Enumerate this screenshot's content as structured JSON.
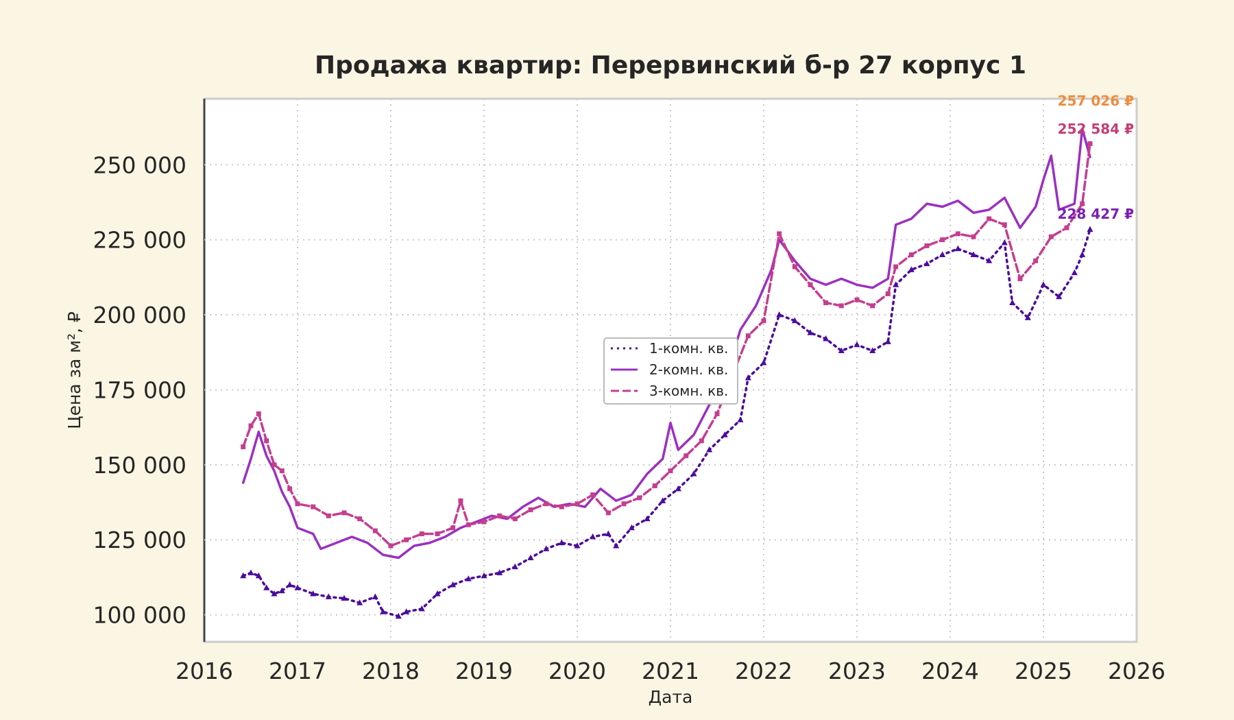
{
  "chart_data": {
    "type": "line",
    "title": "Продажа квартир: Перервинский б-р 27 корпус 1",
    "xlabel": "Дата",
    "ylabel": "Цена за м², ₽",
    "xlim": [
      "2016",
      "2026"
    ],
    "ylim": [
      91000,
      272000
    ],
    "x_ticks": [
      "2016",
      "2017",
      "2018",
      "2019",
      "2020",
      "2021",
      "2022",
      "2023",
      "2024",
      "2025",
      "2026"
    ],
    "y_ticks": [
      "100 000",
      "125 000",
      "150 000",
      "175 000",
      "200 000",
      "225 000",
      "250 000"
    ],
    "y_tick_values": [
      100000,
      125000,
      150000,
      175000,
      200000,
      225000,
      250000
    ],
    "grid": true,
    "legend_position": "center",
    "series": [
      {
        "name": "1-комн. кв.",
        "color": "#4b0c9c",
        "style": "dotted",
        "marker": "triangle",
        "end_label": "228 427 ₽",
        "points": [
          [
            "2016-06",
            113000
          ],
          [
            "2016-07",
            114000
          ],
          [
            "2016-08",
            113000
          ],
          [
            "2016-09",
            109000
          ],
          [
            "2016-10",
            107000
          ],
          [
            "2016-11",
            108000
          ],
          [
            "2016-12",
            110000
          ],
          [
            "2017-01",
            109000
          ],
          [
            "2017-03",
            107000
          ],
          [
            "2017-05",
            106000
          ],
          [
            "2017-07",
            105500
          ],
          [
            "2017-09",
            104000
          ],
          [
            "2017-11",
            106000
          ],
          [
            "2017-12",
            101000
          ],
          [
            "2018-02",
            99500
          ],
          [
            "2018-03",
            101000
          ],
          [
            "2018-05",
            102000
          ],
          [
            "2018-07",
            107000
          ],
          [
            "2018-09",
            110000
          ],
          [
            "2018-11",
            112000
          ],
          [
            "2019-01",
            113000
          ],
          [
            "2019-03",
            114000
          ],
          [
            "2019-05",
            116000
          ],
          [
            "2019-07",
            119000
          ],
          [
            "2019-09",
            122000
          ],
          [
            "2019-11",
            124000
          ],
          [
            "2020-01",
            123000
          ],
          [
            "2020-03",
            126000
          ],
          [
            "2020-05",
            127000
          ],
          [
            "2020-06",
            123000
          ],
          [
            "2020-08",
            129000
          ],
          [
            "2020-10",
            132000
          ],
          [
            "2020-12",
            138000
          ],
          [
            "2021-02",
            142000
          ],
          [
            "2021-04",
            147000
          ],
          [
            "2021-06",
            155000
          ],
          [
            "2021-08",
            160000
          ],
          [
            "2021-10",
            165000
          ],
          [
            "2021-11",
            179000
          ],
          [
            "2022-01",
            184000
          ],
          [
            "2022-03",
            200000
          ],
          [
            "2022-05",
            198000
          ],
          [
            "2022-07",
            194000
          ],
          [
            "2022-09",
            192000
          ],
          [
            "2022-11",
            188000
          ],
          [
            "2023-01",
            190000
          ],
          [
            "2023-03",
            188000
          ],
          [
            "2023-05",
            191000
          ],
          [
            "2023-06",
            210000
          ],
          [
            "2023-08",
            215000
          ],
          [
            "2023-10",
            217000
          ],
          [
            "2023-12",
            220000
          ],
          [
            "2024-02",
            222000
          ],
          [
            "2024-04",
            220000
          ],
          [
            "2024-06",
            218000
          ],
          [
            "2024-08",
            224000
          ],
          [
            "2024-09",
            204000
          ],
          [
            "2024-11",
            199000
          ],
          [
            "2025-01",
            210000
          ],
          [
            "2025-03",
            206000
          ],
          [
            "2025-05",
            214000
          ],
          [
            "2025-06",
            220000
          ],
          [
            "2025-07",
            228427
          ]
        ]
      },
      {
        "name": "2-комн. кв.",
        "color": "#9b30c0",
        "style": "solid",
        "marker": "none",
        "end_label": "252 584 ₽",
        "points": [
          [
            "2016-06",
            144000
          ],
          [
            "2016-07",
            152000
          ],
          [
            "2016-08",
            161000
          ],
          [
            "2016-09",
            153000
          ],
          [
            "2016-10",
            148000
          ],
          [
            "2016-11",
            141000
          ],
          [
            "2016-12",
            136000
          ],
          [
            "2017-01",
            129000
          ],
          [
            "2017-03",
            127000
          ],
          [
            "2017-04",
            122000
          ],
          [
            "2017-06",
            124000
          ],
          [
            "2017-08",
            126000
          ],
          [
            "2017-10",
            124000
          ],
          [
            "2017-12",
            120000
          ],
          [
            "2018-02",
            119000
          ],
          [
            "2018-04",
            123000
          ],
          [
            "2018-06",
            124000
          ],
          [
            "2018-08",
            126000
          ],
          [
            "2018-10",
            129000
          ],
          [
            "2018-12",
            131000
          ],
          [
            "2019-02",
            133000
          ],
          [
            "2019-04",
            132000
          ],
          [
            "2019-06",
            136000
          ],
          [
            "2019-08",
            139000
          ],
          [
            "2019-10",
            136000
          ],
          [
            "2019-12",
            137000
          ],
          [
            "2020-02",
            136000
          ],
          [
            "2020-04",
            142000
          ],
          [
            "2020-06",
            138000
          ],
          [
            "2020-08",
            140000
          ],
          [
            "2020-10",
            147000
          ],
          [
            "2020-12",
            152000
          ],
          [
            "2021-01",
            164000
          ],
          [
            "2021-02",
            155000
          ],
          [
            "2021-04",
            160000
          ],
          [
            "2021-06",
            170000
          ],
          [
            "2021-08",
            178000
          ],
          [
            "2021-10",
            195000
          ],
          [
            "2021-12",
            203000
          ],
          [
            "2022-02",
            215000
          ],
          [
            "2022-03",
            225000
          ],
          [
            "2022-05",
            218000
          ],
          [
            "2022-07",
            212000
          ],
          [
            "2022-09",
            210000
          ],
          [
            "2022-11",
            212000
          ],
          [
            "2023-01",
            210000
          ],
          [
            "2023-03",
            209000
          ],
          [
            "2023-05",
            212000
          ],
          [
            "2023-06",
            230000
          ],
          [
            "2023-08",
            232000
          ],
          [
            "2023-10",
            237000
          ],
          [
            "2023-12",
            236000
          ],
          [
            "2024-02",
            238000
          ],
          [
            "2024-04",
            234000
          ],
          [
            "2024-06",
            235000
          ],
          [
            "2024-08",
            239000
          ],
          [
            "2024-10",
            229000
          ],
          [
            "2024-12",
            236000
          ],
          [
            "2025-01",
            245000
          ],
          [
            "2025-02",
            253000
          ],
          [
            "2025-03",
            235000
          ],
          [
            "2025-05",
            237000
          ],
          [
            "2025-06",
            262000
          ],
          [
            "2025-07",
            252584
          ]
        ]
      },
      {
        "name": "3-комн. кв.",
        "color": "#c43e90",
        "style": "dashed",
        "marker": "square",
        "end_label": "257 026 ₽",
        "points": [
          [
            "2016-06",
            156000
          ],
          [
            "2016-07",
            163000
          ],
          [
            "2016-08",
            167000
          ],
          [
            "2016-09",
            158000
          ],
          [
            "2016-10",
            150000
          ],
          [
            "2016-11",
            148000
          ],
          [
            "2016-12",
            142000
          ],
          [
            "2017-01",
            137000
          ],
          [
            "2017-03",
            136000
          ],
          [
            "2017-05",
            133000
          ],
          [
            "2017-07",
            134000
          ],
          [
            "2017-09",
            132000
          ],
          [
            "2017-11",
            128000
          ],
          [
            "2018-01",
            123000
          ],
          [
            "2018-03",
            125000
          ],
          [
            "2018-05",
            127000
          ],
          [
            "2018-07",
            127000
          ],
          [
            "2018-09",
            129000
          ],
          [
            "2018-10",
            138000
          ],
          [
            "2018-11",
            130000
          ],
          [
            "2019-01",
            131000
          ],
          [
            "2019-03",
            133000
          ],
          [
            "2019-05",
            132000
          ],
          [
            "2019-07",
            135000
          ],
          [
            "2019-09",
            137000
          ],
          [
            "2019-11",
            136000
          ],
          [
            "2020-01",
            137000
          ],
          [
            "2020-03",
            140000
          ],
          [
            "2020-05",
            134000
          ],
          [
            "2020-07",
            137000
          ],
          [
            "2020-09",
            139000
          ],
          [
            "2020-11",
            143000
          ],
          [
            "2021-01",
            148000
          ],
          [
            "2021-03",
            153000
          ],
          [
            "2021-05",
            158000
          ],
          [
            "2021-07",
            167000
          ],
          [
            "2021-09",
            180000
          ],
          [
            "2021-11",
            193000
          ],
          [
            "2022-01",
            198000
          ],
          [
            "2022-03",
            227000
          ],
          [
            "2022-05",
            216000
          ],
          [
            "2022-07",
            210000
          ],
          [
            "2022-09",
            204000
          ],
          [
            "2022-11",
            203000
          ],
          [
            "2023-01",
            205000
          ],
          [
            "2023-03",
            203000
          ],
          [
            "2023-05",
            207000
          ],
          [
            "2023-06",
            216000
          ],
          [
            "2023-08",
            220000
          ],
          [
            "2023-10",
            223000
          ],
          [
            "2023-12",
            225000
          ],
          [
            "2024-02",
            227000
          ],
          [
            "2024-04",
            226000
          ],
          [
            "2024-06",
            232000
          ],
          [
            "2024-08",
            230000
          ],
          [
            "2024-10",
            212000
          ],
          [
            "2024-12",
            218000
          ],
          [
            "2025-02",
            226000
          ],
          [
            "2025-04",
            229000
          ],
          [
            "2025-06",
            237000
          ],
          [
            "2025-07",
            257026
          ]
        ]
      }
    ]
  }
}
